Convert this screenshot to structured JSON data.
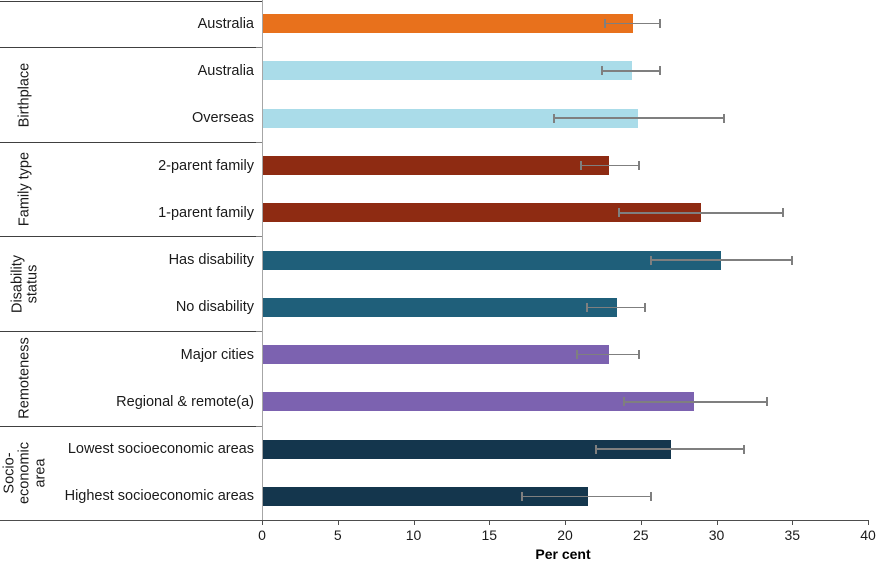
{
  "chart_data": {
    "type": "bar",
    "orientation": "horizontal",
    "title": "",
    "xlabel": "Per cent",
    "ylabel": "",
    "xlim": [
      0,
      40
    ],
    "xticks": [
      0,
      5,
      10,
      15,
      20,
      25,
      30,
      35,
      40
    ],
    "grid": false,
    "legend": "none",
    "error_bars": true,
    "error_bar_color": "#7f7f7f",
    "groups": [
      {
        "label": "",
        "color": "#E8711C",
        "rows": [
          {
            "label": "Australia",
            "value": 24.5,
            "ci_low": 22.6,
            "ci_high": 26.3
          }
        ]
      },
      {
        "label": "Birthplace",
        "color": "#AADCE9",
        "rows": [
          {
            "label": "Australia",
            "value": 24.4,
            "ci_low": 22.4,
            "ci_high": 26.3
          },
          {
            "label": "Overseas",
            "value": 24.8,
            "ci_low": 19.2,
            "ci_high": 30.5
          }
        ]
      },
      {
        "label": "Family type",
        "color": "#8E2B12",
        "rows": [
          {
            "label": "2-parent family",
            "value": 22.9,
            "ci_low": 21.0,
            "ci_high": 24.9
          },
          {
            "label": "1-parent family",
            "value": 29.0,
            "ci_low": 23.5,
            "ci_high": 34.4
          }
        ]
      },
      {
        "label": "Disability\nstatus",
        "color": "#1F5F7A",
        "rows": [
          {
            "label": "Has disability",
            "value": 30.3,
            "ci_low": 25.6,
            "ci_high": 35.0
          },
          {
            "label": "No disability",
            "value": 23.4,
            "ci_low": 21.4,
            "ci_high": 25.3
          }
        ]
      },
      {
        "label": "Remoteness",
        "color": "#7C62B0",
        "rows": [
          {
            "label": "Major cities",
            "value": 22.9,
            "ci_low": 20.7,
            "ci_high": 24.9
          },
          {
            "label": "Regional & remote(a)",
            "value": 28.5,
            "ci_low": 23.8,
            "ci_high": 33.3
          }
        ]
      },
      {
        "label": "Socio-\neconomic\narea",
        "color": "#14364D",
        "rows": [
          {
            "label": "Lowest socioeconomic areas",
            "value": 27.0,
            "ci_low": 22.0,
            "ci_high": 31.8
          },
          {
            "label": "Highest socioeconomic areas",
            "value": 21.5,
            "ci_low": 17.1,
            "ci_high": 25.7
          }
        ]
      }
    ]
  }
}
